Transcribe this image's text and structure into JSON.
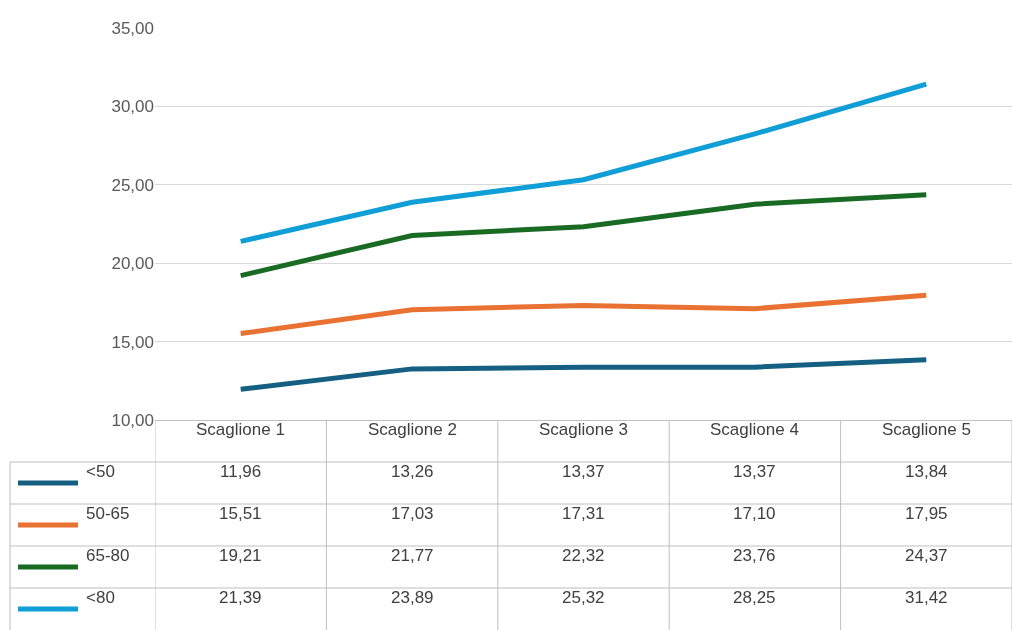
{
  "chart_data": {
    "type": "line",
    "categories": [
      "Scaglione 1",
      "Scaglione 2",
      "Scaglione 3",
      "Scaglione 4",
      "Scaglione 5"
    ],
    "series": [
      {
        "name": "<50",
        "color": "#156082",
        "values": [
          11.96,
          13.26,
          13.37,
          13.37,
          13.84
        ],
        "value_labels": [
          "11,96",
          "13,26",
          "13,37",
          "13,37",
          "13,84"
        ]
      },
      {
        "name": "50-65",
        "color": "#e97132",
        "values": [
          15.51,
          17.03,
          17.31,
          17.1,
          17.95
        ],
        "value_labels": [
          "15,51",
          "17,03",
          "17,31",
          "17,10",
          "17,95"
        ]
      },
      {
        "name": "65-80",
        "color": "#196b24",
        "values": [
          19.21,
          21.77,
          22.32,
          23.76,
          24.37
        ],
        "value_labels": [
          "19,21",
          "21,77",
          "22,32",
          "23,76",
          "24,37"
        ]
      },
      {
        "name": "<80",
        "color": "#0f9ed5",
        "values": [
          21.39,
          23.89,
          25.32,
          28.25,
          31.42
        ],
        "value_labels": [
          "21,39",
          "23,89",
          "25,32",
          "28,25",
          "31,42"
        ]
      }
    ],
    "ylim": [
      10,
      35
    ],
    "yticks": [
      {
        "value": 10,
        "label": "10,00"
      },
      {
        "value": 15,
        "label": "15,00"
      },
      {
        "value": 20,
        "label": "20,00"
      },
      {
        "value": 25,
        "label": "25,00"
      },
      {
        "value": 30,
        "label": "30,00"
      },
      {
        "value": 35,
        "label": "35,00"
      }
    ],
    "grid": "y",
    "legend": "bottom left",
    "marker": "none",
    "line_style": "solid"
  }
}
